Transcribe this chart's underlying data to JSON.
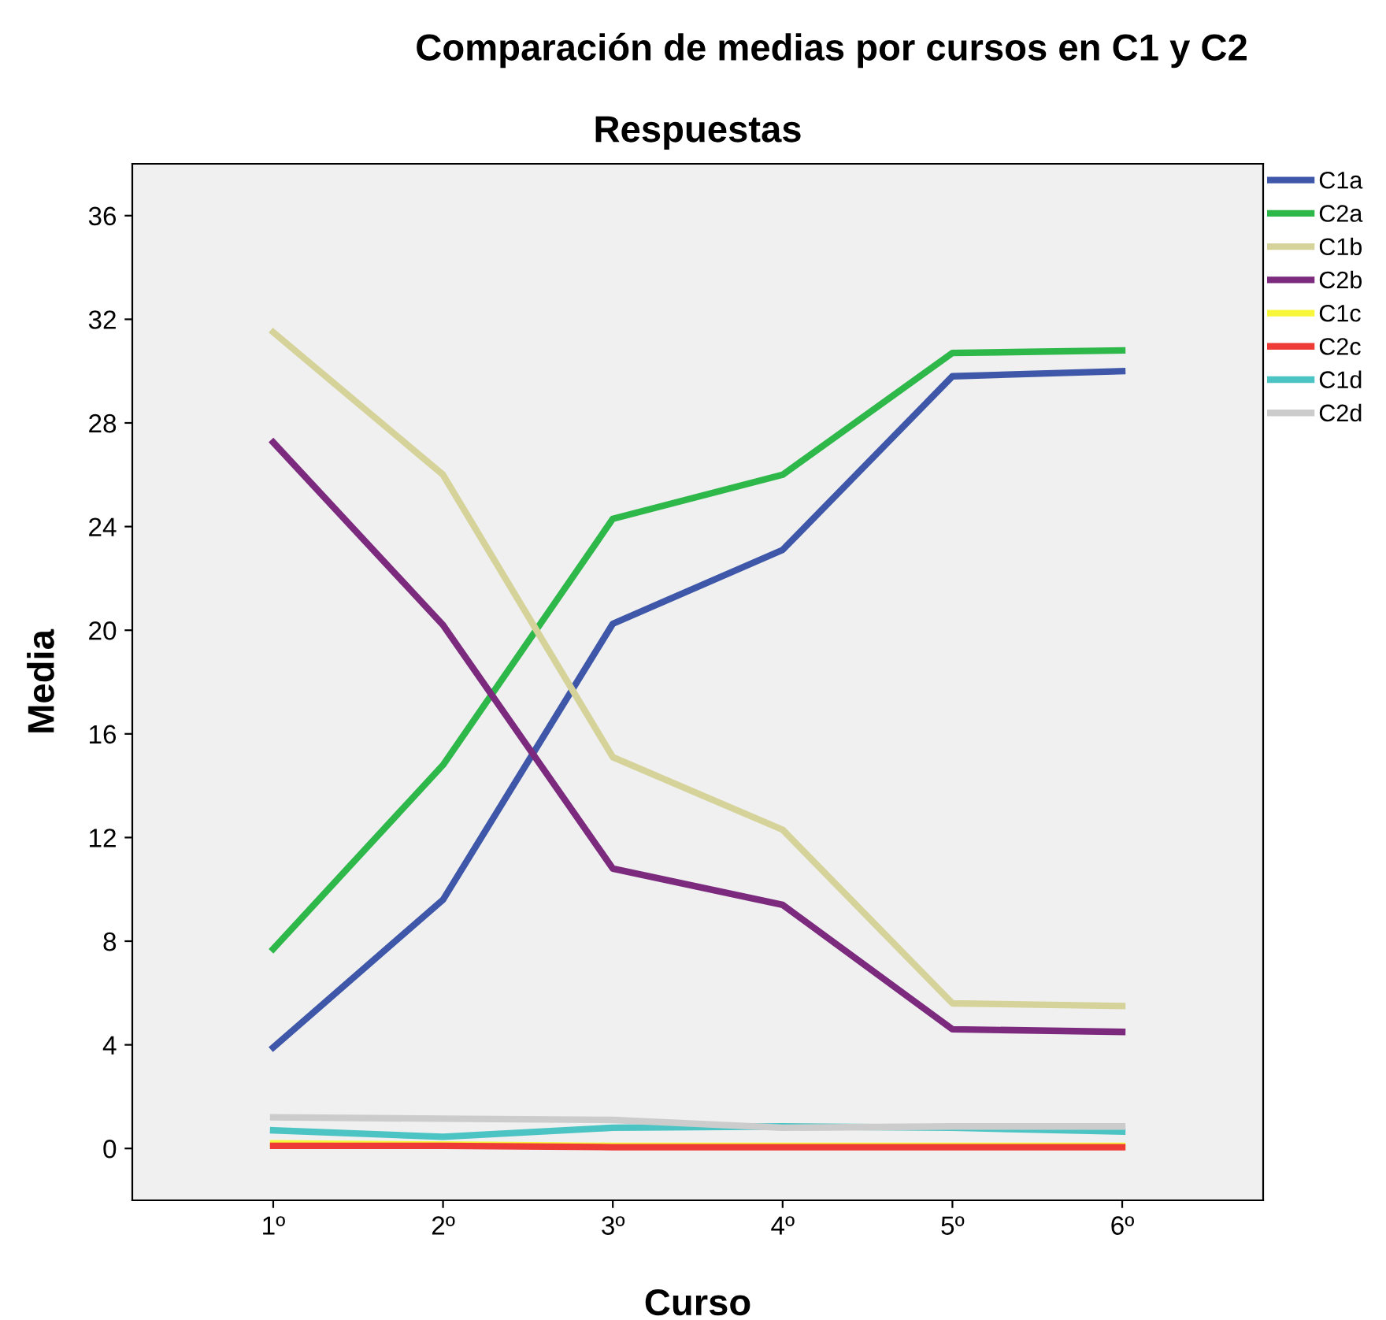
{
  "chart_data": {
    "type": "line",
    "title": "Comparación de medias por cursos en C1 y C2",
    "subtitle": "Respuestas",
    "xlabel": "Curso",
    "ylabel": "Media",
    "categories": [
      "1º",
      "2º",
      "3º",
      "4º",
      "5º",
      "6º"
    ],
    "series": [
      {
        "name": "C1a",
        "color": "#3f57a8",
        "values": [
          3.9,
          9.6,
          20.25,
          23.1,
          29.8,
          30.0
        ]
      },
      {
        "name": "C2a",
        "color": "#2eb84a",
        "values": [
          7.7,
          14.8,
          24.3,
          26.0,
          30.7,
          30.8
        ]
      },
      {
        "name": "C1b",
        "color": "#d6d39a",
        "values": [
          31.5,
          26.0,
          15.1,
          12.3,
          5.6,
          5.5
        ]
      },
      {
        "name": "C2b",
        "color": "#7b2a7e",
        "values": [
          27.25,
          20.2,
          10.8,
          9.4,
          4.6,
          4.5
        ]
      },
      {
        "name": "C1c",
        "color": "#f8f63a",
        "values": [
          0.2,
          0.15,
          0.1,
          0.1,
          0.1,
          0.1
        ]
      },
      {
        "name": "C2c",
        "color": "#ee3b36",
        "values": [
          0.1,
          0.1,
          0.05,
          0.05,
          0.05,
          0.05
        ]
      },
      {
        "name": "C1d",
        "color": "#4cc4c4",
        "values": [
          0.7,
          0.45,
          0.8,
          0.85,
          0.8,
          0.65
        ]
      },
      {
        "name": "C2d",
        "color": "#cccccc",
        "values": [
          1.2,
          1.15,
          1.1,
          0.8,
          0.85,
          0.85
        ]
      }
    ],
    "ylim": [
      -2,
      38
    ],
    "yticks": [
      0,
      4,
      8,
      12,
      16,
      20,
      24,
      28,
      32,
      36
    ],
    "grid": false,
    "legend": "top right",
    "marker": "none",
    "line_style": "solid"
  }
}
